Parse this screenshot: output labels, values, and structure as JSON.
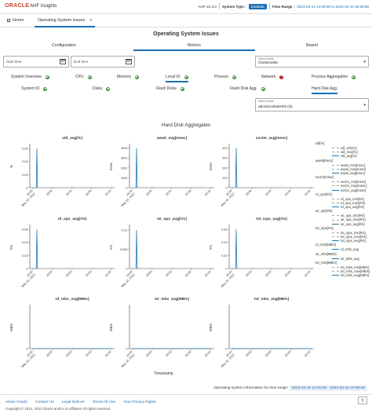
{
  "header": {
    "logo": "ORACLE",
    "app_title": "AHF Insights",
    "version": "AHF-22.3.0",
    "system_type_label": "System Type :",
    "system_type_value": "Exadata",
    "time_range_label": "Time Range :",
    "time_range_value": "2023-02-10 14:00:00 to 2023-02-10 16:59:55"
  },
  "tabs": {
    "home_label": "Home",
    "active_label": "Operating System Issues",
    "close_glyph": "×"
  },
  "page_title": "Operating System Issues",
  "subtabs": [
    "Configuration",
    "Metrics",
    "Report"
  ],
  "date": {
    "start_placeholder": "Start time",
    "end_placeholder": "End time"
  },
  "node_select": {
    "label": "Select Node",
    "value": "Clusterwide"
  },
  "categories_row1": [
    {
      "label": "System Overview",
      "status": "ok"
    },
    {
      "label": "CPU",
      "status": "ok"
    },
    {
      "label": "Memory",
      "status": "ok"
    },
    {
      "label": "Local IO",
      "status": "ok"
    },
    {
      "label": "Process",
      "status": "ok"
    },
    {
      "label": "Network",
      "status": "error"
    },
    {
      "label": "Process Aggregation",
      "status": "ok"
    }
  ],
  "categories_row2": [
    {
      "label": "System IO",
      "status": "ok"
    },
    {
      "label": "Disks",
      "status": "ok"
    },
    {
      "label": "Flash Disks",
      "status": "ok"
    },
    {
      "label": "Flash Disk Agg.",
      "status": "ok"
    },
    {
      "label": "Hard Disk Agg.",
      "status": "none"
    }
  ],
  "node_select2": {
    "label": "Select Node",
    "value": "adcs11celadm03 (S)"
  },
  "section_title": "Hard Disk Aggregates",
  "x_axis_title": "Timestamp",
  "chart_data": [
    {
      "type": "line",
      "title": "util_avg[%]",
      "ylabel": "%",
      "yticks": [
        "0",
        "0.02",
        "0.04",
        "0.06"
      ],
      "xticks": [
        "18:30",
        "19:00",
        "19:30",
        "20:00",
        "20:30"
      ],
      "xdate": "May 10, 2022",
      "ylim": [
        0,
        0.065
      ],
      "series": [
        {
          "name": "util_avg",
          "color": "#1f77b4",
          "x": [
            "18:35",
            "18:36",
            "18:37"
          ],
          "y": [
            0,
            0.06,
            0
          ]
        }
      ]
    },
    {
      "type": "line",
      "title": "await_avg[msec]",
      "ylabel": "msec",
      "yticks": [
        "0",
        "1000",
        "2000",
        "3000",
        "4000"
      ],
      "xticks": [
        "18:30",
        "19:00",
        "19:30",
        "20:00",
        "20:30"
      ],
      "xdate": "May 10, 2022",
      "ylim": [
        0,
        4300
      ],
      "series": [
        {
          "name": "await_avg",
          "color": "#1f77b4",
          "x": [
            "18:35",
            "18:36",
            "18:37"
          ],
          "y": [
            0,
            4000,
            0
          ]
        }
      ]
    },
    {
      "type": "line",
      "title": "svctm_avg[msec]",
      "ylabel": "msec",
      "yticks": [
        "0",
        "100",
        "200",
        "300",
        "400"
      ],
      "xticks": [
        "18:30",
        "19:00",
        "19:30",
        "20:00",
        "20:30"
      ],
      "xdate": "May 10, 2022",
      "ylim": [
        0,
        430
      ],
      "series": [
        {
          "name": "svctm_avg",
          "color": "#1f77b4",
          "x": [
            "18:35",
            "18:36",
            "18:37"
          ],
          "y": [
            0,
            400,
            0
          ]
        }
      ]
    },
    {
      "type": "line",
      "title": "rd_ops_avg[#/s]",
      "ylabel": "#/s",
      "yticks": [
        "0",
        "0.02",
        "0.04",
        "0.06"
      ],
      "xticks": [
        "18:30",
        "19:00",
        "19:30",
        "20:00",
        "20:30"
      ],
      "xdate": "May 10, 2022",
      "ylim": [
        0,
        0.065
      ],
      "series": [
        {
          "name": "rd_ops_avg",
          "color": "#1f77b4",
          "x": [
            "18:35",
            "18:36",
            "18:37"
          ],
          "y": [
            0,
            0.06,
            0
          ]
        }
      ]
    },
    {
      "type": "line",
      "title": "wr_ops_avg[#/s]",
      "ylabel": "#/s",
      "yticks": [
        "0",
        "0.005",
        "0.01"
      ],
      "xticks": [
        "18:30",
        "19:00",
        "19:30",
        "20:00",
        "20:30"
      ],
      "xdate": "May 10, 2022",
      "ylim": [
        0,
        0.011
      ],
      "series": [
        {
          "name": "wr_ops_avg",
          "color": "#1f77b4",
          "x": [
            "18:35",
            "18:36",
            "18:37"
          ],
          "y": [
            0,
            0.01,
            0
          ]
        }
      ]
    },
    {
      "type": "line",
      "title": "tot_iops_avg[#/s]",
      "ylabel": "#/s",
      "yticks": [
        "0",
        "0.02",
        "0.04",
        "0.06"
      ],
      "xticks": [
        "18:30",
        "19:00",
        "19:30",
        "20:00",
        "20:30"
      ],
      "xdate": "May 10, 2022",
      "ylim": [
        0,
        0.065
      ],
      "series": [
        {
          "name": "tot_iops_avg",
          "color": "#1f77b4",
          "x": [
            "18:35",
            "18:36",
            "18:37"
          ],
          "y": [
            0,
            0.06,
            0
          ]
        }
      ]
    },
    {
      "type": "line",
      "title": "rd_mbs_avg[MB/s]",
      "ylabel": "MB/s",
      "yticks": [
        "0"
      ],
      "xticks": [
        "18:30",
        "19:00",
        "19:30",
        "20:00",
        "20:30"
      ],
      "xdate": "May 10, 2022",
      "ylim": [
        0,
        1
      ],
      "series": [
        {
          "name": "rd_mbs_avg",
          "color": "#1f77b4",
          "x": [
            "18:30",
            "20:30"
          ],
          "y": [
            0,
            0
          ]
        }
      ]
    },
    {
      "type": "line",
      "title": "wr_mbs_avg[MB/s]",
      "ylabel": "MB/s",
      "yticks": [
        "0"
      ],
      "xticks": [
        "18:30",
        "19:00",
        "19:30",
        "20:00",
        "20:30"
      ],
      "xdate": "May 10, 2022",
      "ylim": [
        0,
        1
      ],
      "series": [
        {
          "name": "wr_mbs_avg",
          "color": "#1f77b4",
          "x": [
            "18:30",
            "20:30"
          ],
          "y": [
            0,
            0
          ]
        }
      ]
    },
    {
      "type": "line",
      "title": "tot_mbs_avg[MB/s]",
      "ylabel": "MB/s",
      "yticks": [
        "0"
      ],
      "xticks": [
        "18:30",
        "19:00",
        "19:30",
        "20:00",
        "20:30"
      ],
      "xdate": "May 10, 2022",
      "ylim": [
        0,
        1
      ],
      "series": [
        {
          "name": "tot_mbs_avg",
          "color": "#1f77b4",
          "x": [
            "18:30",
            "20:30"
          ],
          "y": [
            0,
            0
          ]
        }
      ]
    }
  ],
  "legend": [
    {
      "group": "util[%]",
      "items": [
        {
          "name": "util_min[%]",
          "color": "#a0a0a0",
          "dashed": true
        },
        {
          "name": "util_max[%]",
          "color": "#a0a0a0",
          "dashed": true
        },
        {
          "name": "util_avg[%]",
          "color": "#1f77b4",
          "dashed": false
        }
      ]
    },
    {
      "group": "await[msec]",
      "items": [
        {
          "name": "await_min[msec]",
          "color": "#a0a0a0",
          "dashed": true
        },
        {
          "name": "await_max[msec]",
          "color": "#a0a0a0",
          "dashed": true
        },
        {
          "name": "await_avg[msec]",
          "color": "#1f77b4",
          "dashed": false
        }
      ]
    },
    {
      "group": "svctm[msec]",
      "items": [
        {
          "name": "svctm_min[msec]",
          "color": "#a0a0a0",
          "dashed": true
        },
        {
          "name": "svctm_max[msec]",
          "color": "#a0a0a0",
          "dashed": true
        },
        {
          "name": "svctm_avg[msec]",
          "color": "#1f77b4",
          "dashed": false
        }
      ]
    },
    {
      "group": "rd_ops[#/s]",
      "items": [
        {
          "name": "rd_ops_min[#/s]",
          "color": "#a0a0a0",
          "dashed": true
        },
        {
          "name": "rd_ops_max[#/s]",
          "color": "#a0a0a0",
          "dashed": true
        },
        {
          "name": "rd_ops_avg[#/s]",
          "color": "#1f77b4",
          "dashed": false
        }
      ]
    },
    {
      "group": "wr_ops[#/s]",
      "items": [
        {
          "name": "wr_ops_min[#/s]",
          "color": "#a0a0a0",
          "dashed": true
        },
        {
          "name": "wr_ops_max[#/s]",
          "color": "#a0a0a0",
          "dashed": true
        },
        {
          "name": "wr_ops_avg[#/s]",
          "color": "#1f77b4",
          "dashed": false
        }
      ]
    },
    {
      "group": "tot_iops[#/s]",
      "items": [
        {
          "name": "tot_iops_min[#/s]",
          "color": "#a0a0a0",
          "dashed": true
        },
        {
          "name": "tot_iops_max[#/s]",
          "color": "#a0a0a0",
          "dashed": true
        },
        {
          "name": "tot_iops_avg[#/s]",
          "color": "#1f77b4",
          "dashed": false
        }
      ]
    },
    {
      "group": "rd_mbs[MB/s]",
      "items": [
        {
          "name": "rd_mbs_avg",
          "color": "#1f77b4",
          "dashed": false
        }
      ]
    },
    {
      "group": "wr_mbs[MB/s]",
      "items": [
        {
          "name": "wr_mbs_avg",
          "color": "#1f77b4",
          "dashed": false
        }
      ]
    },
    {
      "group": "tot_mbs[MB/s]",
      "items": [
        {
          "name": "tot_mbs_min[MB/s]",
          "color": "#a0a0a0",
          "dashed": true
        },
        {
          "name": "tot_mbs_max[MB/s]",
          "color": "#a0a0a0",
          "dashed": true
        },
        {
          "name": "tot_mbs_avg[MB/s]",
          "color": "#1f77b4",
          "dashed": false
        }
      ]
    }
  ],
  "info_line": {
    "label": "Operating system information for time range:",
    "range": "2023-02-10 14:00:00 - 2023-02-10 16:59:55"
  },
  "footer": {
    "links": [
      "About Oracle",
      "Contact Us",
      "Legal Notices",
      "Terms Of Use",
      "Your Privacy Rights"
    ],
    "copyright": "Copyright © 2014, 2023 Oracle and/or its affiliates All rights reserved."
  },
  "scroll_top_glyph": "⇧",
  "colors": {
    "accent": "#1a6fb5",
    "brand": "#c74634",
    "ok": "#3a8a3a",
    "error": "#c0282d",
    "series": "#1f77b4"
  }
}
